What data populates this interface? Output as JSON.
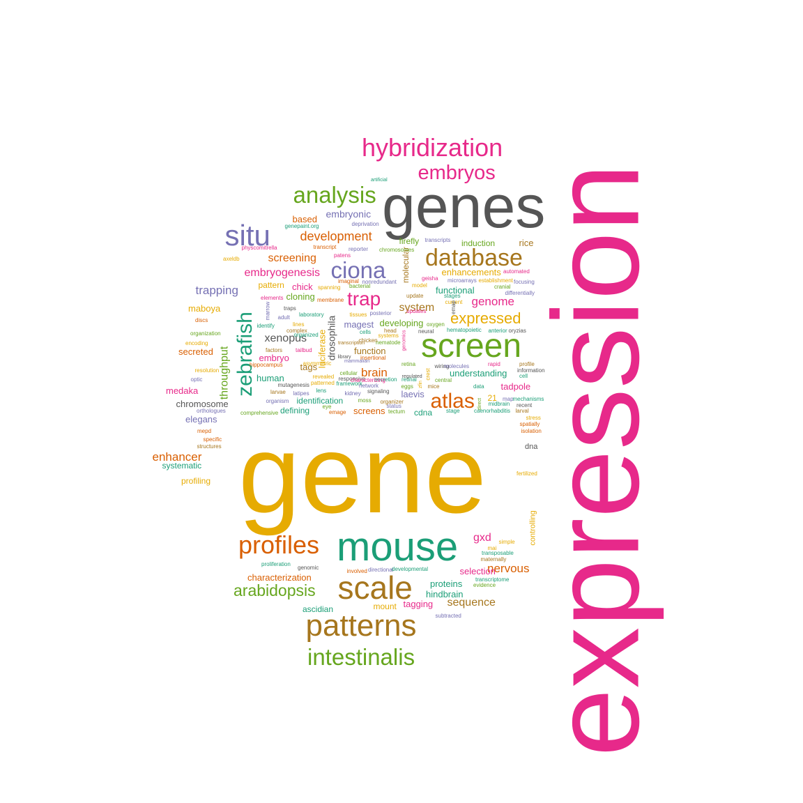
{
  "palette": {
    "magenta": "#e7298a",
    "orange": "#e6ab02",
    "gray": "#555555",
    "teal": "#1b9e77",
    "green": "#66a61e",
    "brown": "#a6761d",
    "purple": "#7570b3",
    "rust": "#d95f02"
  },
  "words": [
    {
      "text": "expression",
      "color": "magenta",
      "rot": "v"
    },
    {
      "text": "gene",
      "color": "orange"
    },
    {
      "text": "genes",
      "color": "gray"
    },
    {
      "text": "mouse",
      "color": "teal"
    },
    {
      "text": "screen",
      "color": "green"
    },
    {
      "text": "patterns",
      "color": "brown"
    },
    {
      "text": "scale",
      "color": "brown"
    },
    {
      "text": "hybridization",
      "color": "magenta"
    },
    {
      "text": "embryos",
      "color": "magenta"
    },
    {
      "text": "analysis",
      "color": "green"
    },
    {
      "text": "situ",
      "color": "purple"
    },
    {
      "text": "intestinalis",
      "color": "green"
    },
    {
      "text": "profiles",
      "color": "rust"
    },
    {
      "text": "database",
      "color": "brown"
    },
    {
      "text": "ciona",
      "color": "purple"
    },
    {
      "text": "zebrafish",
      "color": "teal",
      "rot": "v"
    },
    {
      "text": "atlas",
      "color": "rust"
    },
    {
      "text": "trap",
      "color": "magenta"
    },
    {
      "text": "expressed",
      "color": "orange"
    },
    {
      "text": "arabidopsis",
      "color": "green"
    },
    {
      "text": "development",
      "color": "rust"
    },
    {
      "text": "screening",
      "color": "rust"
    },
    {
      "text": "embryogenesis",
      "color": "magenta"
    },
    {
      "text": "trapping",
      "color": "purple"
    },
    {
      "text": "genome",
      "color": "magenta"
    },
    {
      "text": "system",
      "color": "brown"
    },
    {
      "text": "xenopus",
      "color": "gray"
    },
    {
      "text": "drosophila",
      "color": "gray",
      "rot": "v"
    },
    {
      "text": "throughput",
      "color": "green",
      "rot": "v"
    },
    {
      "text": "brain",
      "color": "rust"
    },
    {
      "text": "enhancer",
      "color": "rust"
    },
    {
      "text": "nervous",
      "color": "rust"
    },
    {
      "text": "sequence",
      "color": "brown"
    },
    {
      "text": "gxd",
      "color": "magenta"
    },
    {
      "text": "embryonic",
      "color": "purple"
    },
    {
      "text": "based",
      "color": "rust"
    },
    {
      "text": "firefly",
      "color": "green"
    },
    {
      "text": "induction",
      "color": "green"
    },
    {
      "text": "rice",
      "color": "brown"
    },
    {
      "text": "enhancements",
      "color": "orange"
    },
    {
      "text": "functional",
      "color": "teal"
    },
    {
      "text": "cloning",
      "color": "green"
    },
    {
      "text": "chick",
      "color": "magenta"
    },
    {
      "text": "pattern",
      "color": "orange"
    },
    {
      "text": "maboya",
      "color": "orange"
    },
    {
      "text": "secreted",
      "color": "rust"
    },
    {
      "text": "developing",
      "color": "green"
    },
    {
      "text": "magest",
      "color": "purple"
    },
    {
      "text": "function",
      "color": "brown"
    },
    {
      "text": "tags",
      "color": "brown"
    },
    {
      "text": "embryo",
      "color": "magenta"
    },
    {
      "text": "human",
      "color": "teal"
    },
    {
      "text": "understanding",
      "color": "teal"
    },
    {
      "text": "laevis",
      "color": "purple"
    },
    {
      "text": "tadpole",
      "color": "magenta"
    },
    {
      "text": "medaka",
      "color": "magenta"
    },
    {
      "text": "chromosome",
      "color": "gray"
    },
    {
      "text": "elegans",
      "color": "purple"
    },
    {
      "text": "identification",
      "color": "teal"
    },
    {
      "text": "defining",
      "color": "teal"
    },
    {
      "text": "screens",
      "color": "rust"
    },
    {
      "text": "cdna",
      "color": "teal"
    },
    {
      "text": "systematic",
      "color": "teal"
    },
    {
      "text": "profiling",
      "color": "orange"
    },
    {
      "text": "dna",
      "color": "gray"
    },
    {
      "text": "characterization",
      "color": "rust"
    },
    {
      "text": "selection",
      "color": "magenta"
    },
    {
      "text": "proteins",
      "color": "teal"
    },
    {
      "text": "hindbrain",
      "color": "teal"
    },
    {
      "text": "tagging",
      "color": "magenta"
    },
    {
      "text": "mount",
      "color": "orange"
    },
    {
      "text": "ascidian",
      "color": "teal"
    },
    {
      "text": "luciferase",
      "color": "orange",
      "rot": "v"
    },
    {
      "text": "molecular",
      "color": "brown",
      "rot": "v"
    },
    {
      "text": "controlling",
      "color": "orange",
      "rot": "v"
    },
    {
      "text": "21",
      "color": "orange"
    },
    {
      "text": "genepaint.org",
      "color": "teal"
    },
    {
      "text": "deprivation",
      "color": "purple"
    },
    {
      "text": "artificial",
      "color": "teal"
    },
    {
      "text": "physcomitrella",
      "color": "magenta"
    },
    {
      "text": "transcript",
      "color": "rust"
    },
    {
      "text": "reporter",
      "color": "purple"
    },
    {
      "text": "chromosomes",
      "color": "green"
    },
    {
      "text": "patens",
      "color": "magenta"
    },
    {
      "text": "transcripts",
      "color": "purple"
    },
    {
      "text": "automated",
      "color": "magenta"
    },
    {
      "text": "axeldb",
      "color": "orange"
    },
    {
      "text": "imaginal",
      "color": "rust"
    },
    {
      "text": "nonredundant",
      "color": "purple"
    },
    {
      "text": "geisha",
      "color": "magenta"
    },
    {
      "text": "microarrays",
      "color": "purple"
    },
    {
      "text": "establishment",
      "color": "orange"
    },
    {
      "text": "focusing",
      "color": "purple"
    },
    {
      "text": "spanning",
      "color": "orange"
    },
    {
      "text": "bacterial",
      "color": "green"
    },
    {
      "text": "model",
      "color": "orange"
    },
    {
      "text": "cranial",
      "color": "green"
    },
    {
      "text": "differentially",
      "color": "purple"
    },
    {
      "text": "elements",
      "color": "magenta"
    },
    {
      "text": "membrane",
      "color": "rust"
    },
    {
      "text": "update",
      "color": "brown"
    },
    {
      "text": "stages",
      "color": "teal"
    },
    {
      "text": "current",
      "color": "orange"
    },
    {
      "text": "emap",
      "color": "gray",
      "rot": "v"
    },
    {
      "text": "marrow",
      "color": "purple",
      "rot": "v"
    },
    {
      "text": "traps",
      "color": "gray"
    },
    {
      "text": "laboratory",
      "color": "teal"
    },
    {
      "text": "tissues",
      "color": "orange"
    },
    {
      "text": "posterior",
      "color": "purple"
    },
    {
      "text": "updates",
      "color": "magenta"
    },
    {
      "text": "discs",
      "color": "rust"
    },
    {
      "text": "adult",
      "color": "purple"
    },
    {
      "text": "identify",
      "color": "teal"
    },
    {
      "text": "lines",
      "color": "orange"
    },
    {
      "text": "complex",
      "color": "brown"
    },
    {
      "text": "oxygen",
      "color": "green"
    },
    {
      "text": "hematopoietic",
      "color": "teal"
    },
    {
      "text": "anterior",
      "color": "teal"
    },
    {
      "text": "oryzias",
      "color": "gray"
    },
    {
      "text": "organization",
      "color": "green"
    },
    {
      "text": "organized",
      "color": "teal"
    },
    {
      "text": "cells",
      "color": "teal"
    },
    {
      "text": "systems",
      "color": "orange"
    },
    {
      "text": "head",
      "color": "brown"
    },
    {
      "text": "neural",
      "color": "gray"
    },
    {
      "text": "encoding",
      "color": "orange"
    },
    {
      "text": "factors",
      "color": "brown"
    },
    {
      "text": "tailbud",
      "color": "magenta"
    },
    {
      "text": "nematode",
      "color": "green"
    },
    {
      "text": "chicken",
      "color": "brown"
    },
    {
      "text": "insertional",
      "color": "rust"
    },
    {
      "text": "hippocampus",
      "color": "rust"
    },
    {
      "text": "resolution",
      "color": "orange"
    },
    {
      "text": "revealed",
      "color": "orange"
    },
    {
      "text": "structures",
      "color": "brown"
    },
    {
      "text": "optic",
      "color": "purple"
    },
    {
      "text": "mutagenesis",
      "color": "gray"
    },
    {
      "text": "patterned",
      "color": "orange"
    },
    {
      "text": "cellular",
      "color": "green"
    },
    {
      "text": "responsive",
      "color": "gray"
    },
    {
      "text": "secretion",
      "color": "teal"
    },
    {
      "text": "characterizing",
      "color": "magenta"
    },
    {
      "text": "framework",
      "color": "teal"
    },
    {
      "text": "network",
      "color": "purple"
    },
    {
      "text": "retina",
      "color": "green"
    },
    {
      "text": "retinal",
      "color": "teal"
    },
    {
      "text": "eggs",
      "color": "green"
    },
    {
      "text": "mice",
      "color": "brown"
    },
    {
      "text": "wiring",
      "color": "gray"
    },
    {
      "text": "molecules",
      "color": "purple"
    },
    {
      "text": "central",
      "color": "green"
    },
    {
      "text": "rapid",
      "color": "magenta"
    },
    {
      "text": "profile",
      "color": "brown"
    },
    {
      "text": "information",
      "color": "gray"
    },
    {
      "text": "cell",
      "color": "teal"
    },
    {
      "text": "data",
      "color": "teal"
    },
    {
      "text": "map",
      "color": "purple"
    },
    {
      "text": "mechanisms",
      "color": "teal"
    },
    {
      "text": "midbrain",
      "color": "teal"
    },
    {
      "text": "recent",
      "color": "gray"
    },
    {
      "text": "larval",
      "color": "brown"
    },
    {
      "text": "caenorhabditis",
      "color": "teal"
    },
    {
      "text": "stage",
      "color": "teal"
    },
    {
      "text": "stress",
      "color": "orange"
    },
    {
      "text": "spatially",
      "color": "rust"
    },
    {
      "text": "isolation",
      "color": "rust"
    },
    {
      "text": "organism",
      "color": "purple"
    },
    {
      "text": "larvae",
      "color": "brown"
    },
    {
      "text": "latipes",
      "color": "purple"
    },
    {
      "text": "lens",
      "color": "teal"
    },
    {
      "text": "eye",
      "color": "green"
    },
    {
      "text": "kidney",
      "color": "purple"
    },
    {
      "text": "signaling",
      "color": "gray"
    },
    {
      "text": "organizer",
      "color": "brown"
    },
    {
      "text": "moss",
      "color": "green"
    },
    {
      "text": "emage",
      "color": "rust"
    },
    {
      "text": "tectum",
      "color": "green"
    },
    {
      "text": "status",
      "color": "purple"
    },
    {
      "text": "orthologues",
      "color": "purple"
    },
    {
      "text": "comprehensive",
      "color": "green"
    },
    {
      "text": "mepd",
      "color": "rust"
    },
    {
      "text": "specific",
      "color": "rust"
    },
    {
      "text": "simple",
      "color": "orange"
    },
    {
      "text": "mai",
      "color": "orange"
    },
    {
      "text": "transposable",
      "color": "teal"
    },
    {
      "text": "maternally",
      "color": "brown"
    },
    {
      "text": "proliferation",
      "color": "teal"
    },
    {
      "text": "genomic",
      "color": "gray"
    },
    {
      "text": "involved",
      "color": "rust"
    },
    {
      "text": "directional",
      "color": "purple"
    },
    {
      "text": "developmental",
      "color": "teal"
    },
    {
      "text": "transcriptome",
      "color": "teal"
    },
    {
      "text": "evidence",
      "color": "green"
    },
    {
      "text": "subtracted",
      "color": "purple"
    },
    {
      "text": "fertilized",
      "color": "orange"
    },
    {
      "text": "library",
      "color": "gray"
    },
    {
      "text": "transcription",
      "color": "brown"
    },
    {
      "text": "mammalian",
      "color": "purple"
    },
    {
      "text": "asymmetric",
      "color": "orange"
    },
    {
      "text": "regulated",
      "color": "gray"
    },
    {
      "text": "crest",
      "color": "orange",
      "rot": "v"
    },
    {
      "text": "genomics",
      "color": "magenta",
      "rot": "v"
    },
    {
      "text": "direct",
      "color": "green",
      "rot": "v"
    },
    {
      "text": "zfin",
      "color": "orange",
      "rot": "v"
    },
    {
      "text": "cleavage",
      "color": "orange",
      "rot": "v"
    },
    {
      "text": "determination",
      "color": "orange",
      "rot": "v"
    },
    {
      "text": "reveal",
      "color": "gray",
      "rot": "v"
    },
    {
      "text": "networks",
      "color": "purple",
      "rot": "v"
    },
    {
      "text": "segment",
      "color": "magenta",
      "rot": "v"
    },
    {
      "text": "tf",
      "color": "gray",
      "rot": "v"
    }
  ]
}
